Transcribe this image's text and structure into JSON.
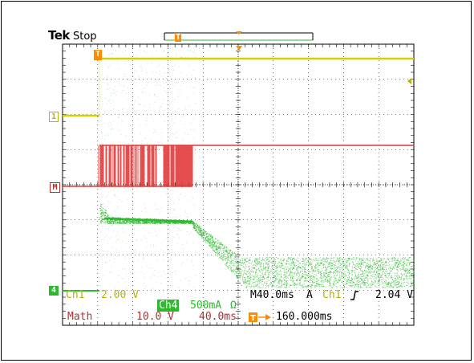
{
  "header": {
    "brand": "Tek",
    "acquisition_state": "Stop"
  },
  "markers": {
    "trigger_position": "T",
    "ch1": "1",
    "math": "M",
    "ch4": "4"
  },
  "readout": {
    "ch1_label": "Ch1",
    "ch1_scale": "2.00 V",
    "ch4_label": "Ch4",
    "ch4_scale": "500mA",
    "ch4_unit": "Ω",
    "timebase": "M40.0ms",
    "trigger_mode": "A",
    "trigger_source": "Ch1",
    "trigger_slope_icon": "rising-edge-icon",
    "trigger_level": "2.04 V",
    "math_label": "Math",
    "math_scale": "10.0 V",
    "math_time": "40.0ms",
    "trigger_offset": "160.000ms"
  },
  "colors": {
    "ch1": "#d4d000",
    "math": "#e23a3a",
    "ch4": "#2db82d",
    "graticule": "#000000",
    "trigger": "#ff8c00"
  }
}
